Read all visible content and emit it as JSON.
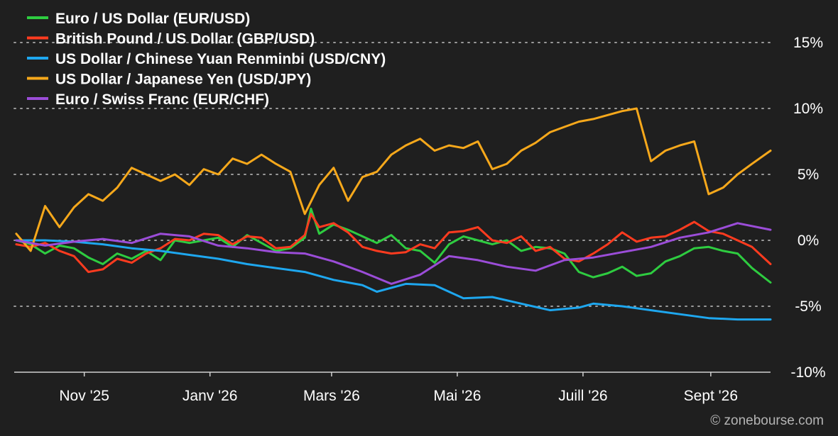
{
  "chart_data": {
    "type": "line",
    "legend_placement": "top-left",
    "y_unit": "%",
    "ylim": [
      -10,
      15
    ],
    "y_ticks": [
      {
        "value": 15,
        "label": "15%"
      },
      {
        "value": 10,
        "label": "10%"
      },
      {
        "value": 5,
        "label": "5%"
      },
      {
        "value": 0,
        "label": "0%"
      },
      {
        "value": -5,
        "label": "-5%"
      },
      {
        "value": -10,
        "label": "-10%"
      }
    ],
    "x_range": [
      "2025-09-28",
      "2026-09-30"
    ],
    "x_ticks": [
      {
        "date": "2025-11-01",
        "label": "Nov '25"
      },
      {
        "date": "2026-01-01",
        "label": "Janv '26"
      },
      {
        "date": "2026-03-01",
        "label": "Mars '26"
      },
      {
        "date": "2026-05-01",
        "label": "Mai '26"
      },
      {
        "date": "2026-07-01",
        "label": "Juill '26"
      },
      {
        "date": "2026-09-01",
        "label": "Sept '26"
      }
    ],
    "grid": "horizontal dotted",
    "series": [
      {
        "name": "Euro / US Dollar (EUR/USD)",
        "color": "#2ecc40",
        "points": [
          [
            "2025-09-29",
            0.0
          ],
          [
            "2025-10-06",
            -0.3
          ],
          [
            "2025-10-13",
            -1.0
          ],
          [
            "2025-10-20",
            -0.4
          ],
          [
            "2025-10-27",
            -0.6
          ],
          [
            "2025-11-03",
            -1.3
          ],
          [
            "2025-11-10",
            -1.8
          ],
          [
            "2025-11-17",
            -1.0
          ],
          [
            "2025-11-24",
            -1.4
          ],
          [
            "2025-12-01",
            -0.8
          ],
          [
            "2025-12-08",
            -1.5
          ],
          [
            "2025-12-15",
            0.0
          ],
          [
            "2025-12-22",
            -0.2
          ],
          [
            "2025-12-29",
            0.0
          ],
          [
            "2026-01-05",
            0.2
          ],
          [
            "2026-01-12",
            -0.5
          ],
          [
            "2026-01-19",
            0.4
          ],
          [
            "2026-01-26",
            -0.2
          ],
          [
            "2026-02-02",
            -0.8
          ],
          [
            "2026-02-09",
            -0.6
          ],
          [
            "2026-02-16",
            0.2
          ],
          [
            "2026-02-19",
            2.4
          ],
          [
            "2026-02-23",
            0.5
          ],
          [
            "2026-03-02",
            1.2
          ],
          [
            "2026-03-09",
            0.8
          ],
          [
            "2026-03-16",
            0.3
          ],
          [
            "2026-03-23",
            -0.2
          ],
          [
            "2026-03-30",
            0.4
          ],
          [
            "2026-04-06",
            -0.6
          ],
          [
            "2026-04-13",
            -0.8
          ],
          [
            "2026-04-20",
            -1.7
          ],
          [
            "2026-04-27",
            -0.3
          ],
          [
            "2026-05-04",
            0.3
          ],
          [
            "2026-05-11",
            0.0
          ],
          [
            "2026-05-18",
            -0.3
          ],
          [
            "2026-05-25",
            0.0
          ],
          [
            "2026-06-01",
            -0.8
          ],
          [
            "2026-06-08",
            -0.5
          ],
          [
            "2026-06-15",
            -0.6
          ],
          [
            "2026-06-22",
            -1.0
          ],
          [
            "2026-06-29",
            -2.4
          ],
          [
            "2026-07-06",
            -2.8
          ],
          [
            "2026-07-13",
            -2.5
          ],
          [
            "2026-07-20",
            -2.0
          ],
          [
            "2026-07-27",
            -2.7
          ],
          [
            "2026-08-03",
            -2.5
          ],
          [
            "2026-08-10",
            -1.6
          ],
          [
            "2026-08-17",
            -1.2
          ],
          [
            "2026-08-24",
            -0.6
          ],
          [
            "2026-08-31",
            -0.5
          ],
          [
            "2026-09-07",
            -0.8
          ],
          [
            "2026-09-14",
            -1.0
          ],
          [
            "2026-09-21",
            -2.1
          ],
          [
            "2026-09-30",
            -3.2
          ]
        ]
      },
      {
        "name": "British Pound / US Dollar (GBP/USD)",
        "color": "#ff3b1f",
        "points": [
          [
            "2025-09-29",
            -0.3
          ],
          [
            "2025-10-06",
            -0.5
          ],
          [
            "2025-10-13",
            -0.2
          ],
          [
            "2025-10-20",
            -0.8
          ],
          [
            "2025-10-27",
            -1.2
          ],
          [
            "2025-11-03",
            -2.4
          ],
          [
            "2025-11-10",
            -2.2
          ],
          [
            "2025-11-17",
            -1.4
          ],
          [
            "2025-11-24",
            -1.7
          ],
          [
            "2025-12-01",
            -1.0
          ],
          [
            "2025-12-08",
            -0.6
          ],
          [
            "2025-12-15",
            0.1
          ],
          [
            "2025-12-22",
            0.0
          ],
          [
            "2025-12-29",
            0.5
          ],
          [
            "2026-01-05",
            0.4
          ],
          [
            "2026-01-12",
            -0.3
          ],
          [
            "2026-01-19",
            0.3
          ],
          [
            "2026-01-26",
            0.2
          ],
          [
            "2026-02-02",
            -0.6
          ],
          [
            "2026-02-09",
            -0.5
          ],
          [
            "2026-02-16",
            0.4
          ],
          [
            "2026-02-19",
            2.0
          ],
          [
            "2026-02-23",
            1.0
          ],
          [
            "2026-03-02",
            1.3
          ],
          [
            "2026-03-09",
            0.6
          ],
          [
            "2026-03-16",
            -0.5
          ],
          [
            "2026-03-23",
            -0.8
          ],
          [
            "2026-03-30",
            -1.0
          ],
          [
            "2026-04-06",
            -0.9
          ],
          [
            "2026-04-13",
            -0.3
          ],
          [
            "2026-04-20",
            -0.6
          ],
          [
            "2026-04-27",
            0.6
          ],
          [
            "2026-05-04",
            0.7
          ],
          [
            "2026-05-11",
            1.0
          ],
          [
            "2026-05-18",
            0.0
          ],
          [
            "2026-05-25",
            -0.2
          ],
          [
            "2026-06-01",
            0.3
          ],
          [
            "2026-06-08",
            -0.8
          ],
          [
            "2026-06-15",
            -0.5
          ],
          [
            "2026-06-22",
            -1.4
          ],
          [
            "2026-06-29",
            -1.6
          ],
          [
            "2026-07-06",
            -1.0
          ],
          [
            "2026-07-13",
            -0.3
          ],
          [
            "2026-07-20",
            0.6
          ],
          [
            "2026-07-27",
            -0.1
          ],
          [
            "2026-08-03",
            0.2
          ],
          [
            "2026-08-10",
            0.3
          ],
          [
            "2026-08-17",
            0.8
          ],
          [
            "2026-08-24",
            1.4
          ],
          [
            "2026-08-31",
            0.7
          ],
          [
            "2026-09-07",
            0.5
          ],
          [
            "2026-09-14",
            0.0
          ],
          [
            "2026-09-21",
            -0.5
          ],
          [
            "2026-09-30",
            -1.8
          ]
        ]
      },
      {
        "name": "US Dollar / Chinese Yuan Renminbi (USD/CNY)",
        "color": "#1ea7ef",
        "points": [
          [
            "2025-09-29",
            0.0
          ],
          [
            "2025-10-13",
            0.0
          ],
          [
            "2025-10-27",
            -0.1
          ],
          [
            "2025-11-10",
            -0.3
          ],
          [
            "2025-11-24",
            -0.6
          ],
          [
            "2025-12-08",
            -0.8
          ],
          [
            "2025-12-22",
            -1.1
          ],
          [
            "2026-01-05",
            -1.4
          ],
          [
            "2026-01-19",
            -1.8
          ],
          [
            "2026-02-02",
            -2.1
          ],
          [
            "2026-02-16",
            -2.4
          ],
          [
            "2026-03-02",
            -3.0
          ],
          [
            "2026-03-16",
            -3.4
          ],
          [
            "2026-03-23",
            -3.9
          ],
          [
            "2026-04-06",
            -3.3
          ],
          [
            "2026-04-20",
            -3.4
          ],
          [
            "2026-05-04",
            -4.4
          ],
          [
            "2026-05-18",
            -4.3
          ],
          [
            "2026-06-01",
            -4.8
          ],
          [
            "2026-06-15",
            -5.3
          ],
          [
            "2026-06-29",
            -5.1
          ],
          [
            "2026-07-06",
            -4.8
          ],
          [
            "2026-07-20",
            -5.0
          ],
          [
            "2026-08-03",
            -5.3
          ],
          [
            "2026-08-17",
            -5.6
          ],
          [
            "2026-08-31",
            -5.9
          ],
          [
            "2026-09-14",
            -6.0
          ],
          [
            "2026-09-30",
            -6.0
          ]
        ]
      },
      {
        "name": "US Dollar / Japanese Yen (USD/JPY)",
        "color": "#f6a81b",
        "points": [
          [
            "2025-09-29",
            0.5
          ],
          [
            "2025-10-06",
            -0.8
          ],
          [
            "2025-10-13",
            2.6
          ],
          [
            "2025-10-20",
            1.0
          ],
          [
            "2025-10-27",
            2.5
          ],
          [
            "2025-11-03",
            3.5
          ],
          [
            "2025-11-10",
            3.0
          ],
          [
            "2025-11-17",
            4.0
          ],
          [
            "2025-11-24",
            5.5
          ],
          [
            "2025-12-01",
            5.0
          ],
          [
            "2025-12-08",
            4.5
          ],
          [
            "2025-12-15",
            5.0
          ],
          [
            "2025-12-22",
            4.2
          ],
          [
            "2025-12-29",
            5.4
          ],
          [
            "2026-01-05",
            5.0
          ],
          [
            "2026-01-12",
            6.2
          ],
          [
            "2026-01-19",
            5.8
          ],
          [
            "2026-01-26",
            6.5
          ],
          [
            "2026-02-02",
            5.8
          ],
          [
            "2026-02-09",
            5.2
          ],
          [
            "2026-02-16",
            2.0
          ],
          [
            "2026-02-23",
            4.2
          ],
          [
            "2026-03-02",
            5.5
          ],
          [
            "2026-03-09",
            3.0
          ],
          [
            "2026-03-16",
            4.8
          ],
          [
            "2026-03-23",
            5.2
          ],
          [
            "2026-03-30",
            6.5
          ],
          [
            "2026-04-06",
            7.2
          ],
          [
            "2026-04-13",
            7.7
          ],
          [
            "2026-04-20",
            6.8
          ],
          [
            "2026-04-27",
            7.2
          ],
          [
            "2026-05-04",
            7.0
          ],
          [
            "2026-05-11",
            7.5
          ],
          [
            "2026-05-18",
            5.4
          ],
          [
            "2026-05-25",
            5.8
          ],
          [
            "2026-06-01",
            6.8
          ],
          [
            "2026-06-08",
            7.4
          ],
          [
            "2026-06-15",
            8.2
          ],
          [
            "2026-06-22",
            8.6
          ],
          [
            "2026-06-29",
            9.0
          ],
          [
            "2026-07-06",
            9.2
          ],
          [
            "2026-07-13",
            9.5
          ],
          [
            "2026-07-20",
            9.8
          ],
          [
            "2026-07-27",
            10.0
          ],
          [
            "2026-08-03",
            6.0
          ],
          [
            "2026-08-10",
            6.8
          ],
          [
            "2026-08-17",
            7.2
          ],
          [
            "2026-08-24",
            7.5
          ],
          [
            "2026-08-31",
            3.5
          ],
          [
            "2026-09-07",
            4.0
          ],
          [
            "2026-09-14",
            5.0
          ],
          [
            "2026-09-21",
            5.8
          ],
          [
            "2026-09-30",
            6.8
          ]
        ]
      },
      {
        "name": "Euro / Swiss Franc (EUR/CHF)",
        "color": "#9b4dd8",
        "points": [
          [
            "2025-09-29",
            0.0
          ],
          [
            "2025-10-13",
            -0.4
          ],
          [
            "2025-10-27",
            -0.1
          ],
          [
            "2025-11-10",
            0.1
          ],
          [
            "2025-11-24",
            -0.2
          ],
          [
            "2025-12-08",
            0.5
          ],
          [
            "2025-12-22",
            0.3
          ],
          [
            "2026-01-05",
            -0.4
          ],
          [
            "2026-01-19",
            -0.6
          ],
          [
            "2026-02-02",
            -0.9
          ],
          [
            "2026-02-16",
            -1.0
          ],
          [
            "2026-03-02",
            -1.6
          ],
          [
            "2026-03-16",
            -2.4
          ],
          [
            "2026-03-30",
            -3.3
          ],
          [
            "2026-04-13",
            -2.6
          ],
          [
            "2026-04-27",
            -1.2
          ],
          [
            "2026-05-11",
            -1.5
          ],
          [
            "2026-05-25",
            -2.0
          ],
          [
            "2026-06-08",
            -2.3
          ],
          [
            "2026-06-22",
            -1.5
          ],
          [
            "2026-07-06",
            -1.3
          ],
          [
            "2026-07-20",
            -0.9
          ],
          [
            "2026-08-03",
            -0.5
          ],
          [
            "2026-08-17",
            0.2
          ],
          [
            "2026-08-31",
            0.6
          ],
          [
            "2026-09-14",
            1.3
          ],
          [
            "2026-09-30",
            0.8
          ]
        ]
      }
    ]
  },
  "watermark": "© zonebourse.com"
}
